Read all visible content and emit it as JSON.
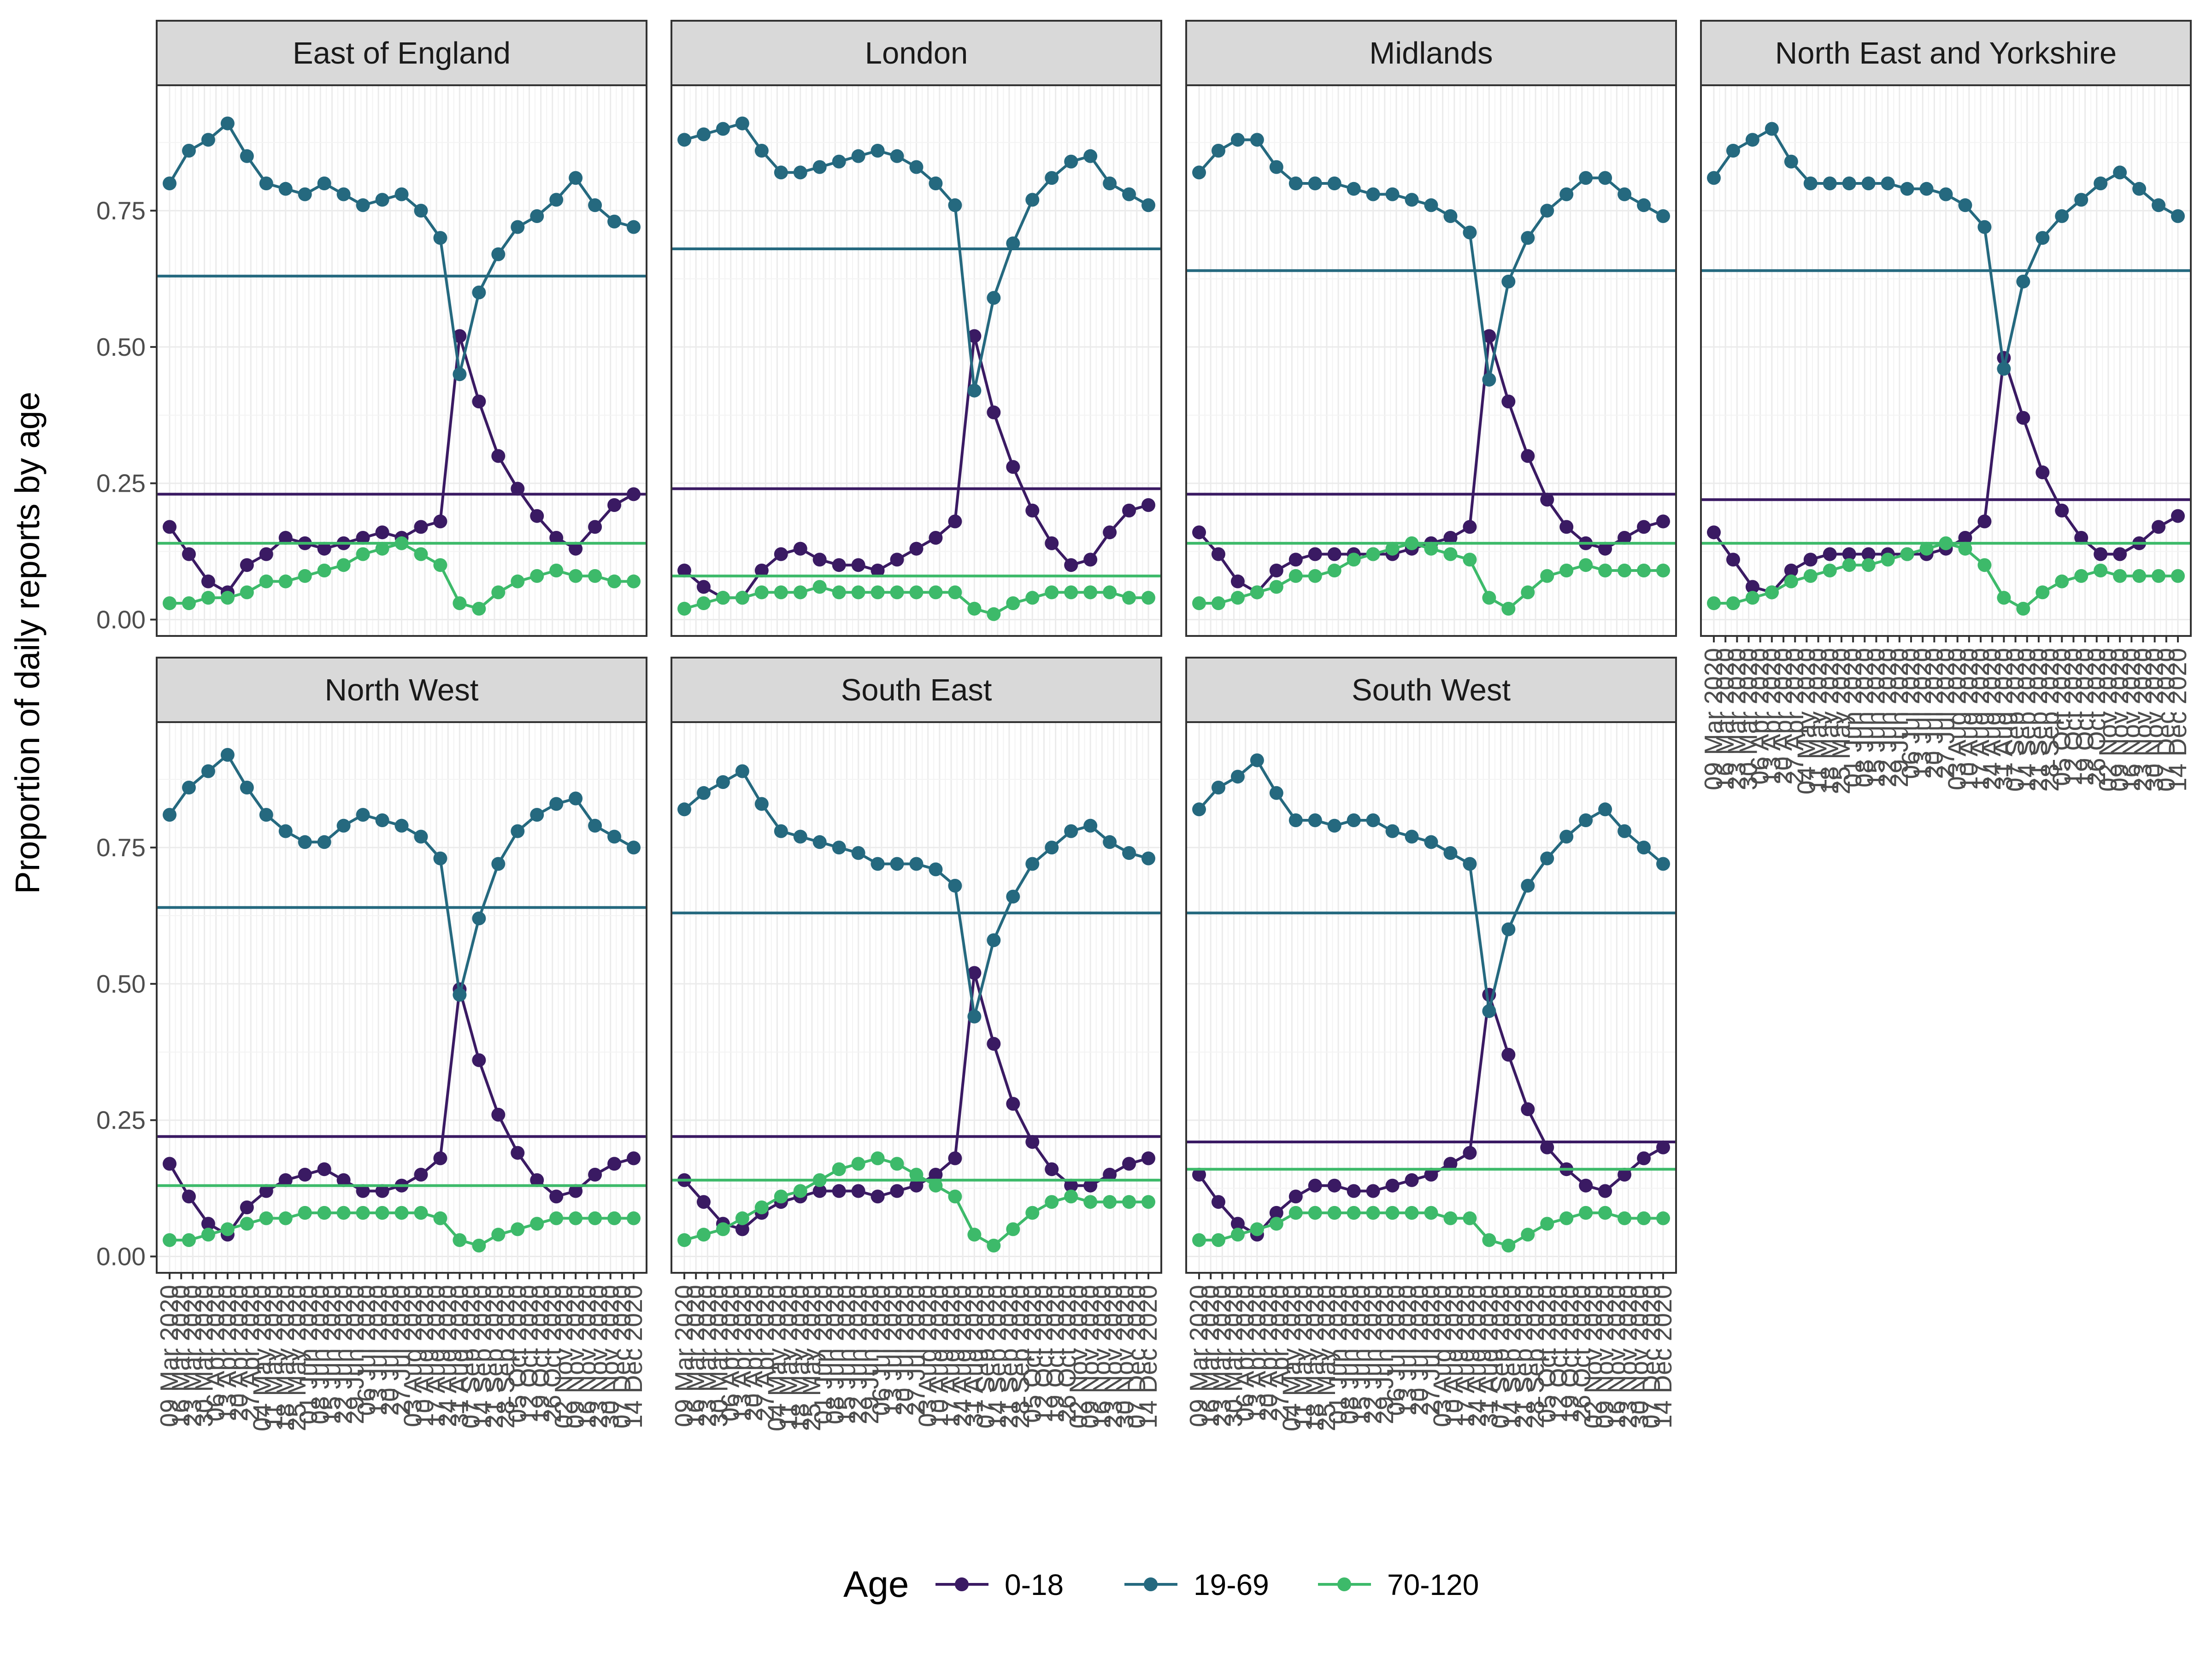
{
  "chart_data": {
    "type": "line",
    "ylabel": "Proportion of daily reports by age",
    "y_ticks": [
      "0.00",
      "0.25",
      "0.50",
      "0.75"
    ],
    "ylim": [
      -0.03,
      0.98
    ],
    "x_tick_labels": [
      "09 Mar 2020",
      "16 Mar 2020",
      "23 Mar 2020",
      "30 Mar 2020",
      "06 Apr 2020",
      "13 Apr 2020",
      "20 Apr 2020",
      "27 Apr 2020",
      "04 May 2020",
      "11 May 2020",
      "18 May 2020",
      "25 May 2020",
      "01 Jun 2020",
      "08 Jun 2020",
      "15 Jun 2020",
      "22 Jun 2020",
      "29 Jun 2020",
      "06 Jul 2020",
      "13 Jul 2020",
      "20 Jul 2020",
      "27 Jul 2020",
      "03 Aug 2020",
      "10 Aug 2020",
      "17 Aug 2020",
      "24 Aug 2020",
      "31 Aug 2020",
      "07 Sep 2020",
      "14 Sep 2020",
      "21 Sep 2020",
      "28 Sep 2020",
      "05 Oct 2020",
      "12 Oct 2020",
      "19 Oct 2020",
      "26 Oct 2020",
      "02 Nov 2020",
      "09 Nov 2020",
      "16 Nov 2020",
      "23 Nov 2020",
      "30 Nov 2020",
      "07 Dec 2020",
      "14 Dec 2020"
    ],
    "legend": {
      "title": "Age",
      "position": "bottom"
    },
    "series_colors": {
      "0-18": "#3a1a63",
      "19-69": "#25697f",
      "70-120": "#3dba6a"
    },
    "panels": [
      {
        "name": "East of England",
        "reference_lines": {
          "0-18": 0.23,
          "19-69": 0.63,
          "70-120": 0.14
        },
        "series": [
          {
            "name": "0-18",
            "values": [
              0.17,
              0.12,
              0.07,
              0.05,
              0.1,
              0.12,
              0.15,
              0.14,
              0.13,
              0.14,
              0.15,
              0.16,
              0.15,
              0.17,
              0.18,
              0.52,
              0.4,
              0.3,
              0.24,
              0.19,
              0.15,
              0.13,
              0.17,
              0.21,
              0.23
            ]
          },
          {
            "name": "19-69",
            "values": [
              0.8,
              0.86,
              0.88,
              0.91,
              0.85,
              0.8,
              0.79,
              0.78,
              0.8,
              0.78,
              0.76,
              0.77,
              0.78,
              0.75,
              0.7,
              0.45,
              0.6,
              0.67,
              0.72,
              0.74,
              0.77,
              0.81,
              0.76,
              0.73,
              0.72
            ]
          },
          {
            "name": "70-120",
            "values": [
              0.03,
              0.03,
              0.04,
              0.04,
              0.05,
              0.07,
              0.07,
              0.08,
              0.09,
              0.1,
              0.12,
              0.13,
              0.14,
              0.12,
              0.1,
              0.03,
              0.02,
              0.05,
              0.07,
              0.08,
              0.09,
              0.08,
              0.08,
              0.07,
              0.07
            ]
          }
        ]
      },
      {
        "name": "London",
        "reference_lines": {
          "0-18": 0.24,
          "19-69": 0.68,
          "70-120": 0.08
        },
        "series": [
          {
            "name": "0-18",
            "values": [
              0.09,
              0.06,
              0.04,
              0.04,
              0.09,
              0.12,
              0.13,
              0.11,
              0.1,
              0.1,
              0.09,
              0.11,
              0.13,
              0.15,
              0.18,
              0.52,
              0.38,
              0.28,
              0.2,
              0.14,
              0.1,
              0.11,
              0.16,
              0.2,
              0.21
            ]
          },
          {
            "name": "19-69",
            "values": [
              0.88,
              0.89,
              0.9,
              0.91,
              0.86,
              0.82,
              0.82,
              0.83,
              0.84,
              0.85,
              0.86,
              0.85,
              0.83,
              0.8,
              0.76,
              0.42,
              0.59,
              0.69,
              0.77,
              0.81,
              0.84,
              0.85,
              0.8,
              0.78,
              0.76
            ]
          },
          {
            "name": "70-120",
            "values": [
              0.02,
              0.03,
              0.04,
              0.04,
              0.05,
              0.05,
              0.05,
              0.06,
              0.05,
              0.05,
              0.05,
              0.05,
              0.05,
              0.05,
              0.05,
              0.02,
              0.01,
              0.03,
              0.04,
              0.05,
              0.05,
              0.05,
              0.05,
              0.04,
              0.04
            ]
          }
        ]
      },
      {
        "name": "Midlands",
        "reference_lines": {
          "0-18": 0.23,
          "19-69": 0.64,
          "70-120": 0.14
        },
        "series": [
          {
            "name": "0-18",
            "values": [
              0.16,
              0.12,
              0.07,
              0.05,
              0.09,
              0.11,
              0.12,
              0.12,
              0.12,
              0.12,
              0.12,
              0.13,
              0.14,
              0.15,
              0.17,
              0.52,
              0.4,
              0.3,
              0.22,
              0.17,
              0.14,
              0.13,
              0.15,
              0.17,
              0.18
            ]
          },
          {
            "name": "19-69",
            "values": [
              0.82,
              0.86,
              0.88,
              0.88,
              0.83,
              0.8,
              0.8,
              0.8,
              0.79,
              0.78,
              0.78,
              0.77,
              0.76,
              0.74,
              0.71,
              0.44,
              0.62,
              0.7,
              0.75,
              0.78,
              0.81,
              0.81,
              0.78,
              0.76,
              0.74
            ]
          },
          {
            "name": "70-120",
            "values": [
              0.03,
              0.03,
              0.04,
              0.05,
              0.06,
              0.08,
              0.08,
              0.09,
              0.11,
              0.12,
              0.13,
              0.14,
              0.13,
              0.12,
              0.11,
              0.04,
              0.02,
              0.05,
              0.08,
              0.09,
              0.1,
              0.09,
              0.09,
              0.09,
              0.09
            ]
          }
        ]
      },
      {
        "name": "North East and Yorkshire",
        "reference_lines": {
          "0-18": 0.22,
          "19-69": 0.64,
          "70-120": 0.14
        },
        "series": [
          {
            "name": "0-18",
            "values": [
              0.16,
              0.11,
              0.06,
              0.05,
              0.09,
              0.11,
              0.12,
              0.12,
              0.12,
              0.12,
              0.12,
              0.12,
              0.13,
              0.15,
              0.18,
              0.48,
              0.37,
              0.27,
              0.2,
              0.15,
              0.12,
              0.12,
              0.14,
              0.17,
              0.19
            ]
          },
          {
            "name": "19-69",
            "values": [
              0.81,
              0.86,
              0.88,
              0.9,
              0.84,
              0.8,
              0.8,
              0.8,
              0.8,
              0.8,
              0.79,
              0.79,
              0.78,
              0.76,
              0.72,
              0.46,
              0.62,
              0.7,
              0.74,
              0.77,
              0.8,
              0.82,
              0.79,
              0.76,
              0.74
            ]
          },
          {
            "name": "70-120",
            "values": [
              0.03,
              0.03,
              0.04,
              0.05,
              0.07,
              0.08,
              0.09,
              0.1,
              0.1,
              0.11,
              0.12,
              0.13,
              0.14,
              0.13,
              0.1,
              0.04,
              0.02,
              0.05,
              0.07,
              0.08,
              0.09,
              0.08,
              0.08,
              0.08,
              0.08
            ]
          }
        ]
      },
      {
        "name": "North West",
        "reference_lines": {
          "0-18": 0.22,
          "19-69": 0.64,
          "70-120": 0.13
        },
        "series": [
          {
            "name": "0-18",
            "values": [
              0.17,
              0.11,
              0.06,
              0.04,
              0.09,
              0.12,
              0.14,
              0.15,
              0.16,
              0.14,
              0.12,
              0.12,
              0.13,
              0.15,
              0.18,
              0.49,
              0.36,
              0.26,
              0.19,
              0.14,
              0.11,
              0.12,
              0.15,
              0.17,
              0.18
            ]
          },
          {
            "name": "19-69",
            "values": [
              0.81,
              0.86,
              0.89,
              0.92,
              0.86,
              0.81,
              0.78,
              0.76,
              0.76,
              0.79,
              0.81,
              0.8,
              0.79,
              0.77,
              0.73,
              0.48,
              0.62,
              0.72,
              0.78,
              0.81,
              0.83,
              0.84,
              0.79,
              0.77,
              0.75
            ]
          },
          {
            "name": "70-120",
            "values": [
              0.03,
              0.03,
              0.04,
              0.05,
              0.06,
              0.07,
              0.07,
              0.08,
              0.08,
              0.08,
              0.08,
              0.08,
              0.08,
              0.08,
              0.07,
              0.03,
              0.02,
              0.04,
              0.05,
              0.06,
              0.07,
              0.07,
              0.07,
              0.07,
              0.07
            ]
          }
        ]
      },
      {
        "name": "South East",
        "reference_lines": {
          "0-18": 0.22,
          "19-69": 0.63,
          "70-120": 0.14
        },
        "series": [
          {
            "name": "0-18",
            "values": [
              0.14,
              0.1,
              0.06,
              0.05,
              0.08,
              0.1,
              0.11,
              0.12,
              0.12,
              0.12,
              0.11,
              0.12,
              0.13,
              0.15,
              0.18,
              0.52,
              0.39,
              0.28,
              0.21,
              0.16,
              0.13,
              0.13,
              0.15,
              0.17,
              0.18
            ]
          },
          {
            "name": "19-69",
            "values": [
              0.82,
              0.85,
              0.87,
              0.89,
              0.83,
              0.78,
              0.77,
              0.76,
              0.75,
              0.74,
              0.72,
              0.72,
              0.72,
              0.71,
              0.68,
              0.44,
              0.58,
              0.66,
              0.72,
              0.75,
              0.78,
              0.79,
              0.76,
              0.74,
              0.73
            ]
          },
          {
            "name": "70-120",
            "values": [
              0.03,
              0.04,
              0.05,
              0.07,
              0.09,
              0.11,
              0.12,
              0.14,
              0.16,
              0.17,
              0.18,
              0.17,
              0.15,
              0.13,
              0.11,
              0.04,
              0.02,
              0.05,
              0.08,
              0.1,
              0.11,
              0.1,
              0.1,
              0.1,
              0.1
            ]
          }
        ]
      },
      {
        "name": "South West",
        "reference_lines": {
          "0-18": 0.21,
          "19-69": 0.63,
          "70-120": 0.16
        },
        "series": [
          {
            "name": "0-18",
            "values": [
              0.15,
              0.1,
              0.06,
              0.04,
              0.08,
              0.11,
              0.13,
              0.13,
              0.12,
              0.12,
              0.13,
              0.14,
              0.15,
              0.17,
              0.19,
              0.48,
              0.37,
              0.27,
              0.2,
              0.16,
              0.13,
              0.12,
              0.15,
              0.18,
              0.2
            ]
          },
          {
            "name": "19-69",
            "values": [
              0.82,
              0.86,
              0.88,
              0.91,
              0.85,
              0.8,
              0.8,
              0.79,
              0.8,
              0.8,
              0.78,
              0.77,
              0.76,
              0.74,
              0.72,
              0.45,
              0.6,
              0.68,
              0.73,
              0.77,
              0.8,
              0.82,
              0.78,
              0.75,
              0.72
            ]
          },
          {
            "name": "70-120",
            "values": [
              0.03,
              0.03,
              0.04,
              0.05,
              0.06,
              0.08,
              0.08,
              0.08,
              0.08,
              0.08,
              0.08,
              0.08,
              0.08,
              0.07,
              0.07,
              0.03,
              0.02,
              0.04,
              0.06,
              0.07,
              0.08,
              0.08,
              0.07,
              0.07,
              0.07
            ]
          }
        ]
      }
    ]
  }
}
